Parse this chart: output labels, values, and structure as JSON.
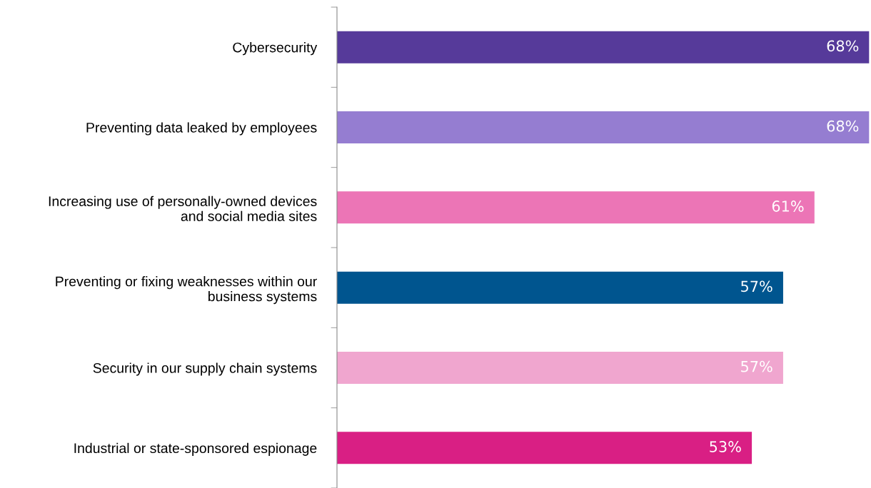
{
  "chart_data": {
    "type": "bar",
    "orientation": "horizontal",
    "categories": [
      "Cybersecurity",
      "Preventing data leaked by employees",
      "Increasing use of personally-owned devices\nand social media sites",
      "Preventing or fixing weaknesses within our\nbusiness systems",
      "Security in our supply chain systems",
      "Industrial or state-sponsored espionage"
    ],
    "values": [
      68,
      68,
      61,
      57,
      57,
      53
    ],
    "value_labels": [
      "68%",
      "68%",
      "61%",
      "57%",
      "57%",
      "53%"
    ],
    "colors": [
      "#563a9a",
      "#957dd1",
      "#ec75b6",
      "#00558f",
      "#f0a6cf",
      "#d91f84"
    ]
  }
}
